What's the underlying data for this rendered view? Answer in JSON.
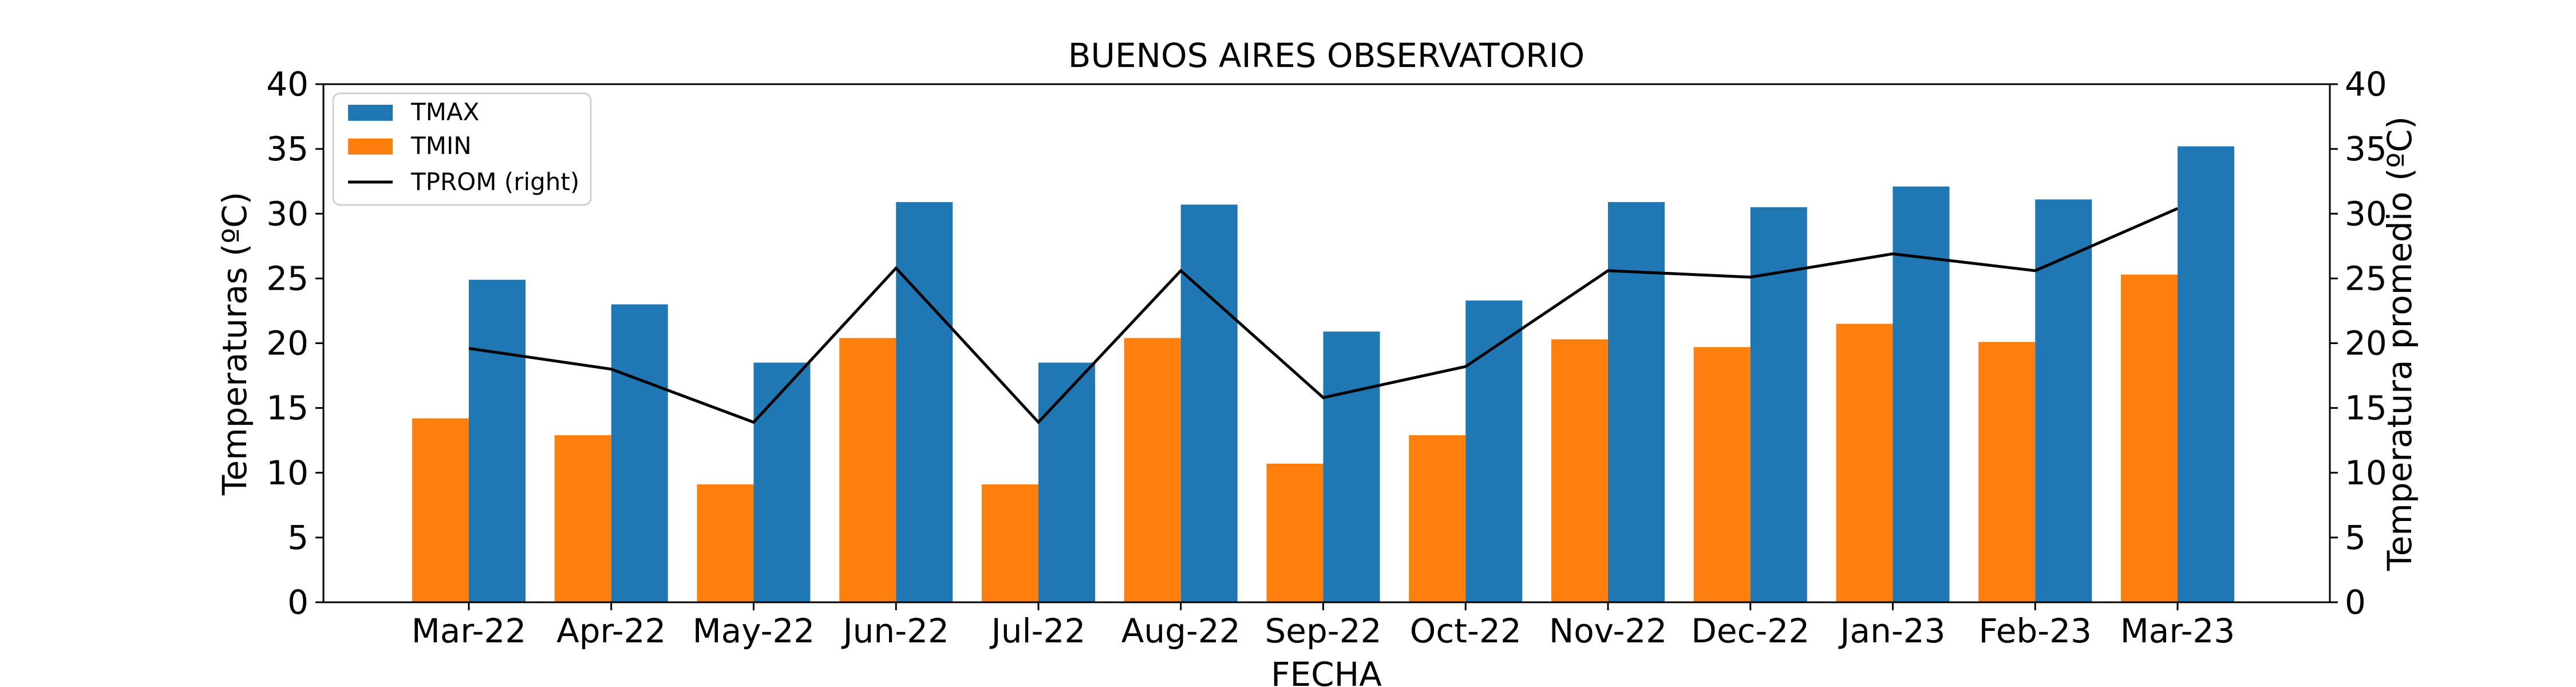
{
  "chart_data": {
    "type": "bar",
    "title": "BUENOS AIRES OBSERVATORIO",
    "xlabel": "FECHA",
    "ylabel": "Temperaturas (ºC)",
    "ylabel_right": "Temperatura promedio (ºC)",
    "categories": [
      "Mar-22",
      "Apr-22",
      "May-22",
      "Jun-22",
      "Jul-22",
      "Aug-22",
      "Sep-22",
      "Oct-22",
      "Nov-22",
      "Dec-22",
      "Jan-23",
      "Feb-23",
      "Mar-23"
    ],
    "ylim": [
      0,
      40
    ],
    "ylim_right": [
      0,
      40
    ],
    "yticks": [
      0,
      5,
      10,
      15,
      20,
      25,
      30,
      35,
      40
    ],
    "grid": false,
    "legend_position": "top-left",
    "series": [
      {
        "name": "TMAX",
        "kind": "bar",
        "axis": "left",
        "color": "#1f77b4",
        "values": [
          24.9,
          23.0,
          18.5,
          30.9,
          18.5,
          30.7,
          20.9,
          23.3,
          30.9,
          30.5,
          32.1,
          31.1,
          35.2
        ]
      },
      {
        "name": "TMIN",
        "kind": "bar",
        "axis": "left",
        "color": "#ff7f0e",
        "values": [
          14.2,
          12.9,
          9.1,
          20.4,
          9.1,
          20.4,
          10.7,
          12.9,
          20.3,
          19.7,
          21.5,
          20.1,
          25.3
        ]
      },
      {
        "name": "TPROM (right)",
        "kind": "line",
        "axis": "right",
        "color": "#000000",
        "values": [
          19.6,
          18.0,
          13.9,
          25.8,
          13.9,
          25.6,
          15.8,
          18.2,
          25.6,
          25.1,
          26.9,
          25.6,
          30.4
        ]
      }
    ]
  }
}
